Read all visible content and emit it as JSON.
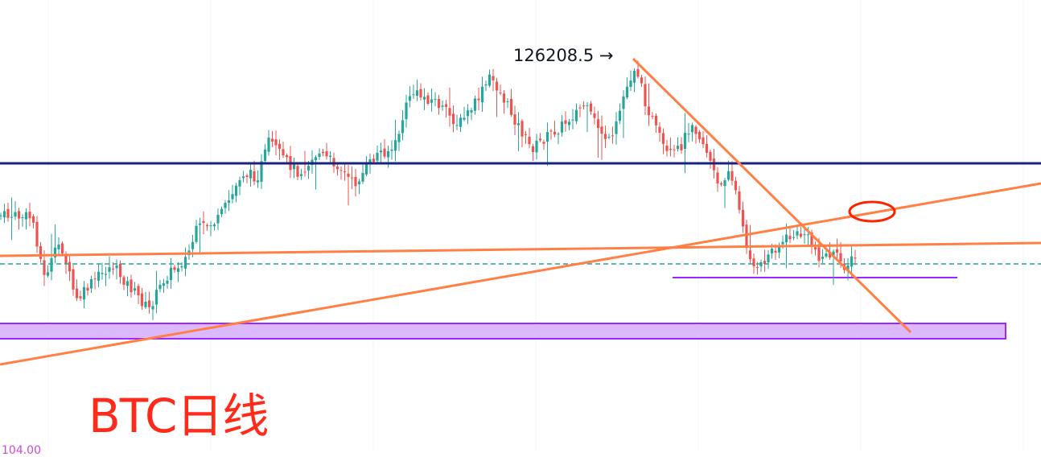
{
  "chart_data": {
    "type": "candlestick",
    "title": "BTC日线",
    "peak_label": "126208.5 →",
    "peak_value": 126208.5,
    "cut_off_text": "104.00",
    "colors": {
      "up": "#26a69a",
      "down": "#ef5350",
      "resistance_line": "#1a237e",
      "trend_lines": "#ff7f45",
      "support_zone_fill": "#dcb8ff",
      "support_zone_border": "#9c27ff",
      "range_line": "#9c27ff",
      "dashed_level": "#26a69a",
      "marker_ellipse": "#ff2200",
      "title": "#ff2a1a"
    },
    "legend": "none",
    "grid": false
  }
}
